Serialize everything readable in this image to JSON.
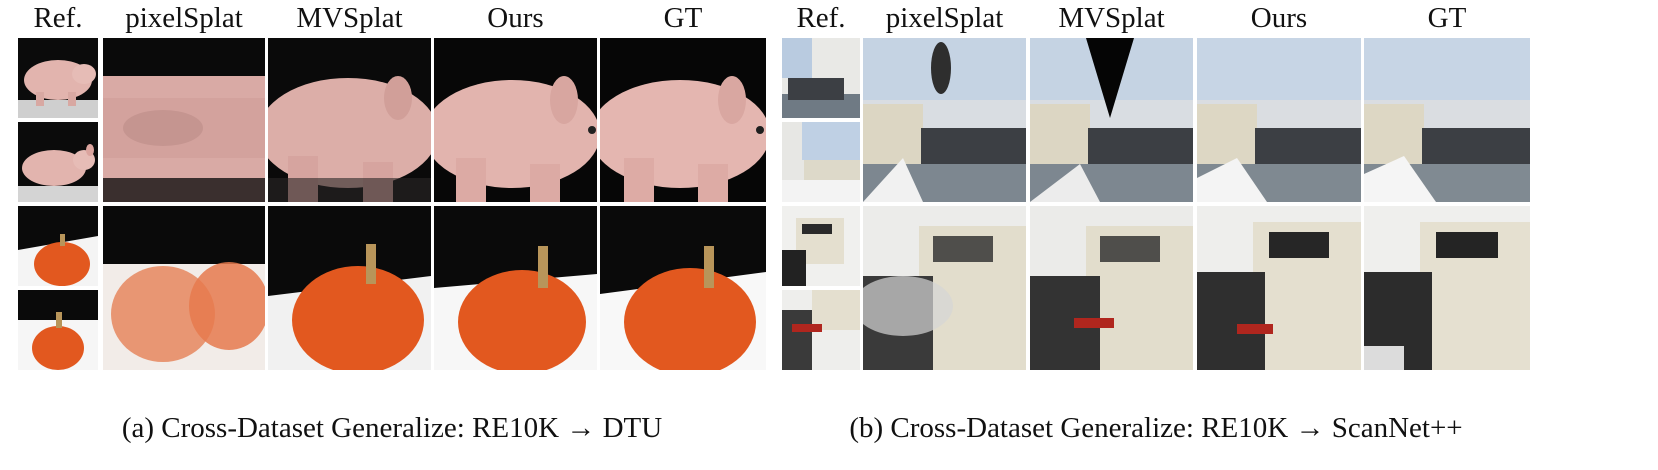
{
  "panel_a": {
    "headers": [
      "Ref.",
      "pixelSplat",
      "MVSplat",
      "Ours",
      "GT"
    ],
    "caption": "(a) Cross-Dataset Generalize: RE10K → DTU"
  },
  "panel_b": {
    "headers": [
      "Ref.",
      "pixelSplat",
      "MVSplat",
      "Ours",
      "GT"
    ],
    "caption": "(b) Cross-Dataset Generalize: RE10K → ScanNet++"
  },
  "colors": {
    "pig": "#e2b4ae",
    "pumpkin": "#e2581f",
    "stem": "#b8955a",
    "sofa": "#3c3f44",
    "printer": "#e4dfcf"
  }
}
